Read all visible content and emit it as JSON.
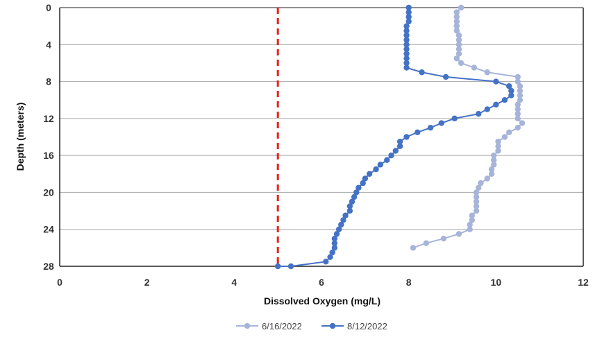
{
  "chart_data": {
    "type": "line",
    "xlabel": "Dissolved Oxygen (mg/L)",
    "ylabel": "Depth (meters)",
    "xlim": [
      0,
      12
    ],
    "ylim": [
      0,
      28
    ],
    "y_inverted": true,
    "x_ticks": [
      0,
      2,
      4,
      6,
      8,
      10,
      12
    ],
    "y_ticks": [
      0,
      4,
      8,
      12,
      16,
      20,
      24,
      28
    ],
    "grid": "horizontal",
    "legend_position": "bottom",
    "reference_line": {
      "x": 5,
      "color": "#e8201c",
      "style": "dashed"
    },
    "series": [
      {
        "name": "6/16/2022",
        "color": "#a7b4d9",
        "points": [
          [
            9.2,
            0
          ],
          [
            9.1,
            0.5
          ],
          [
            9.1,
            1
          ],
          [
            9.1,
            1.5
          ],
          [
            9.1,
            2
          ],
          [
            9.1,
            2.5
          ],
          [
            9.15,
            3
          ],
          [
            9.15,
            3.5
          ],
          [
            9.15,
            4
          ],
          [
            9.15,
            4.5
          ],
          [
            9.15,
            5
          ],
          [
            9.1,
            5.5
          ],
          [
            9.2,
            6
          ],
          [
            9.5,
            6.5
          ],
          [
            9.8,
            7
          ],
          [
            10.5,
            7.5
          ],
          [
            10.5,
            8
          ],
          [
            10.55,
            8.5
          ],
          [
            10.55,
            9
          ],
          [
            10.55,
            9.5
          ],
          [
            10.55,
            10
          ],
          [
            10.5,
            10.5
          ],
          [
            10.5,
            11
          ],
          [
            10.5,
            11.5
          ],
          [
            10.5,
            12
          ],
          [
            10.6,
            12.5
          ],
          [
            10.5,
            13
          ],
          [
            10.3,
            13.5
          ],
          [
            10.2,
            14
          ],
          [
            10.05,
            14.5
          ],
          [
            10.05,
            15
          ],
          [
            10.05,
            15.5
          ],
          [
            9.95,
            16
          ],
          [
            9.95,
            16.5
          ],
          [
            9.95,
            17
          ],
          [
            9.9,
            17.5
          ],
          [
            9.9,
            18
          ],
          [
            9.8,
            18.5
          ],
          [
            9.65,
            19
          ],
          [
            9.6,
            19.5
          ],
          [
            9.55,
            20
          ],
          [
            9.55,
            20.5
          ],
          [
            9.55,
            21
          ],
          [
            9.55,
            21.5
          ],
          [
            9.55,
            22
          ],
          [
            9.45,
            22.5
          ],
          [
            9.45,
            23
          ],
          [
            9.4,
            23.5
          ],
          [
            9.4,
            24
          ],
          [
            9.15,
            24.5
          ],
          [
            8.8,
            25
          ],
          [
            8.4,
            25.5
          ],
          [
            8.1,
            26
          ]
        ]
      },
      {
        "name": "8/12/2022",
        "color": "#4472c4",
        "points": [
          [
            8.0,
            0
          ],
          [
            8.0,
            0.5
          ],
          [
            8.0,
            1
          ],
          [
            8.0,
            1.5
          ],
          [
            7.95,
            2
          ],
          [
            7.95,
            2.5
          ],
          [
            7.95,
            3
          ],
          [
            7.95,
            3.5
          ],
          [
            7.95,
            4
          ],
          [
            7.95,
            4.5
          ],
          [
            7.95,
            5
          ],
          [
            7.95,
            5.5
          ],
          [
            7.95,
            6
          ],
          [
            7.95,
            6.5
          ],
          [
            8.3,
            7
          ],
          [
            8.85,
            7.5
          ],
          [
            10.0,
            8
          ],
          [
            10.3,
            8.5
          ],
          [
            10.35,
            9
          ],
          [
            10.35,
            9.5
          ],
          [
            10.2,
            10
          ],
          [
            10.0,
            10.5
          ],
          [
            9.8,
            11
          ],
          [
            9.6,
            11.5
          ],
          [
            9.05,
            12
          ],
          [
            8.75,
            12.5
          ],
          [
            8.5,
            13
          ],
          [
            8.2,
            13.5
          ],
          [
            7.95,
            14
          ],
          [
            7.8,
            14.5
          ],
          [
            7.8,
            15
          ],
          [
            7.7,
            15.5
          ],
          [
            7.6,
            16
          ],
          [
            7.5,
            16.5
          ],
          [
            7.35,
            17
          ],
          [
            7.25,
            17.5
          ],
          [
            7.1,
            18
          ],
          [
            7.0,
            18.5
          ],
          [
            6.95,
            19
          ],
          [
            6.85,
            19.5
          ],
          [
            6.8,
            20
          ],
          [
            6.75,
            20.5
          ],
          [
            6.7,
            21
          ],
          [
            6.65,
            21.5
          ],
          [
            6.65,
            22
          ],
          [
            6.55,
            22.5
          ],
          [
            6.5,
            23
          ],
          [
            6.45,
            23.5
          ],
          [
            6.4,
            24
          ],
          [
            6.35,
            24.5
          ],
          [
            6.3,
            25
          ],
          [
            6.3,
            25.5
          ],
          [
            6.3,
            26
          ],
          [
            6.25,
            26.5
          ],
          [
            6.2,
            27
          ],
          [
            6.1,
            27.5
          ],
          [
            5.3,
            28
          ],
          [
            5.0,
            28
          ]
        ]
      }
    ]
  }
}
